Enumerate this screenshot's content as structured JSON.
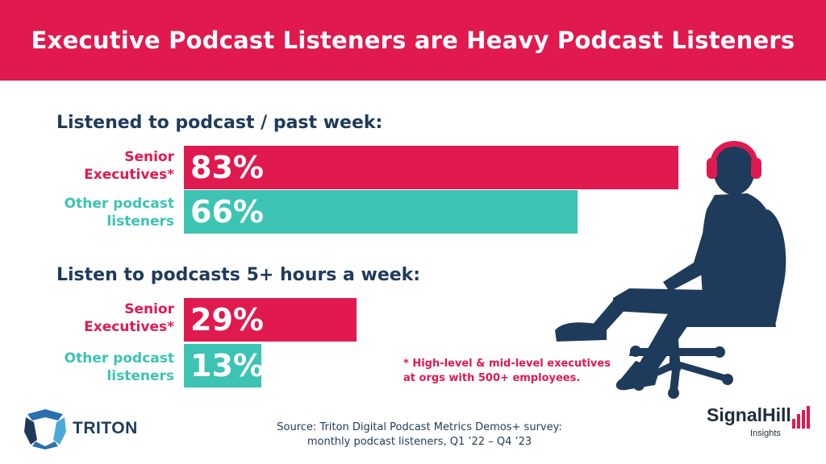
{
  "header": {
    "title": "Executive Podcast Listeners are Heavy Podcast Listeners"
  },
  "colors": {
    "accent": "#e0194f",
    "teal": "#3cc3b4",
    "navy": "#1f3b5c"
  },
  "chart_data": [
    {
      "type": "bar",
      "orientation": "horizontal",
      "title": "Listened to podcast / past week:",
      "categories": [
        {
          "lines": [
            "Senior",
            "Executives*"
          ]
        },
        {
          "lines": [
            "Other podcast",
            "listeners"
          ]
        }
      ],
      "values": [
        83,
        66
      ],
      "value_labels": [
        "83%",
        "66%"
      ],
      "xlim": [
        0,
        100
      ]
    },
    {
      "type": "bar",
      "orientation": "horizontal",
      "title": "Listen to podcasts 5+ hours a week:",
      "categories": [
        {
          "lines": [
            "Senior",
            "Executives*"
          ]
        },
        {
          "lines": [
            "Other podcast",
            "listeners"
          ]
        }
      ],
      "values": [
        29,
        13
      ],
      "value_labels": [
        "29%",
        "13%"
      ],
      "xlim": [
        0,
        100
      ]
    }
  ],
  "footnote": {
    "line1": "* High-level & mid-level executives",
    "line2": "at orgs with 500+ employees."
  },
  "source": {
    "line1": "Source: Triton Digital Podcast Metrics Demos+ survey:",
    "line2": "monthly podcast listeners, Q1 ’22 – Q4 ’23"
  },
  "logos": {
    "triton": "TRITON",
    "signal": "SignalHill",
    "signal_sub": "Insights"
  },
  "icons": {
    "figure": "seated-person-with-headphones-icon"
  }
}
